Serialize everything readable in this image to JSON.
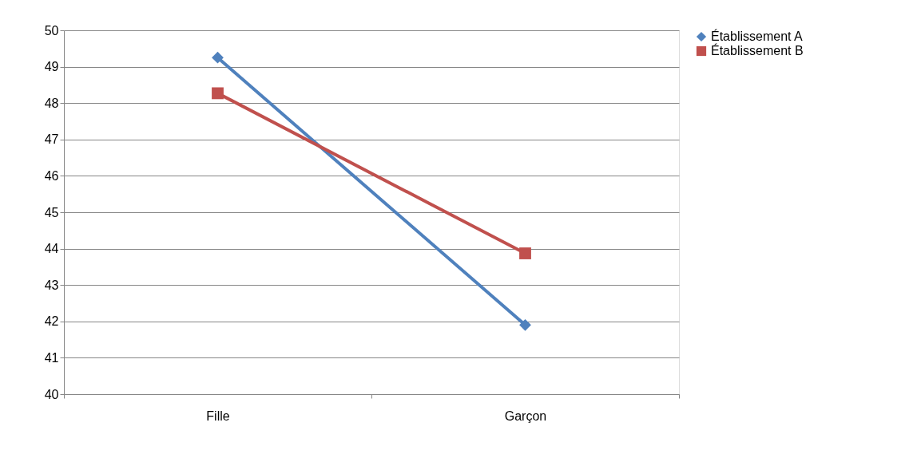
{
  "chart_data": {
    "type": "line",
    "categories": [
      "Fille",
      "Garçon"
    ],
    "series": [
      {
        "name": "Établissement A",
        "color": "#4f81bd",
        "marker": "diamond",
        "values": [
          49.25,
          41.9
        ]
      },
      {
        "name": "Établissement B",
        "color": "#c0504d",
        "marker": "square",
        "values": [
          48.27,
          43.87
        ]
      }
    ],
    "ylim": [
      40,
      50
    ],
    "yticks": [
      40,
      41,
      42,
      43,
      44,
      45,
      46,
      47,
      48,
      49,
      50
    ],
    "grid": "y",
    "legend": "right",
    "line_style": "solid"
  }
}
